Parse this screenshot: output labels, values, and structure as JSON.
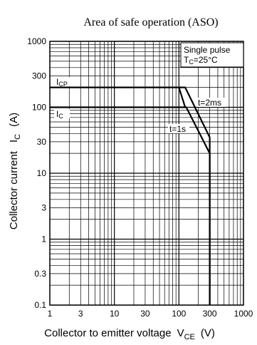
{
  "chart_data": {
    "type": "line",
    "title": "Area of safe operation (ASO)",
    "xlabel": {
      "text": "Collector to emitter voltage",
      "symbol": "V",
      "subscript": "CE",
      "unit": "(V)"
    },
    "ylabel": {
      "text": "Collector current",
      "symbol": "I",
      "subscript": "C",
      "unit": "(A)"
    },
    "x_scale": "log",
    "y_scale": "log",
    "xlim": [
      1,
      1000
    ],
    "ylim": [
      0.1,
      1000
    ],
    "x_ticks": [
      {
        "value": 1,
        "label": "1"
      },
      {
        "value": 3,
        "label": "3"
      },
      {
        "value": 10,
        "label": "10"
      },
      {
        "value": 30,
        "label": "30"
      },
      {
        "value": 100,
        "label": "100"
      },
      {
        "value": 300,
        "label": "300"
      },
      {
        "value": 1000,
        "label": "1000"
      }
    ],
    "y_ticks": [
      {
        "value": 0.1,
        "label": "0.1"
      },
      {
        "value": 0.3,
        "label": "0.3"
      },
      {
        "value": 1,
        "label": "1"
      },
      {
        "value": 3,
        "label": "3"
      },
      {
        "value": 10,
        "label": "10"
      },
      {
        "value": 30,
        "label": "30"
      },
      {
        "value": 100,
        "label": "100"
      },
      {
        "value": 300,
        "label": "300"
      },
      {
        "value": 1000,
        "label": "1000"
      }
    ],
    "grid": true,
    "legend": {
      "placement": "top-right",
      "lines": [
        "Single pulse",
        "T",
        "C",
        "=25°C"
      ]
    },
    "reference_lines": [
      {
        "label_main": "I",
        "label_sub": "CP",
        "value": 200
      },
      {
        "label_main": "I",
        "label_sub": "C",
        "value": 100
      }
    ],
    "series": [
      {
        "name": "t=2ms",
        "points": [
          [
            1,
            200
          ],
          [
            125,
            200
          ],
          [
            300,
            35
          ],
          [
            300,
            0.1
          ]
        ]
      },
      {
        "name": "t=1s",
        "points": [
          [
            1,
            100
          ],
          [
            130,
            100
          ],
          [
            300,
            20
          ],
          [
            300,
            0.1
          ]
        ]
      }
    ],
    "extra_segment": {
      "points": [
        [
          100,
          200
        ],
        [
          125,
          100
        ]
      ]
    },
    "annotations": [
      "t=2ms",
      "t=1s"
    ]
  },
  "colors": {
    "line": "#000000",
    "grid": "#000000",
    "background": "#ffffff"
  }
}
